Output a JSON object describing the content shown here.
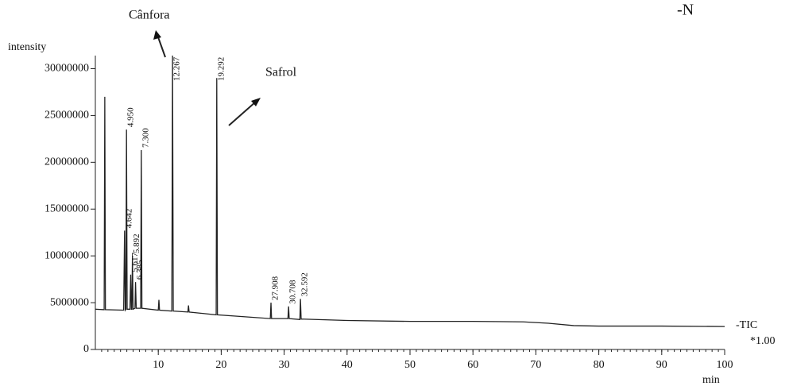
{
  "chart_data": {
    "type": "line",
    "y_label": "intensity",
    "x_label": "min",
    "annotations": [
      "Cânfora",
      "Safrol",
      "-N"
    ],
    "trace_label": "-TIC",
    "trace_scale": "*1.00",
    "color": "#222222",
    "xlim": [
      0,
      100
    ],
    "xticks": [
      10,
      20,
      30,
      40,
      50,
      60,
      70,
      80,
      90,
      100
    ],
    "ylim": [
      0,
      31400000
    ],
    "yticks": [
      0,
      5000000,
      10000000,
      15000000,
      20000000,
      25000000,
      30000000
    ],
    "x": [
      0,
      1.4,
      1.5,
      1.6,
      4.5,
      4.642,
      4.75,
      4.85,
      4.95,
      5.05,
      5.5,
      5.617,
      5.72,
      5.8,
      5.892,
      6.0,
      6.3,
      6.385,
      6.5,
      7.2,
      7.3,
      7.4,
      10.0,
      10.1,
      10.2,
      12.15,
      12.267,
      12.38,
      14.7,
      14.8,
      14.9,
      19.2,
      19.292,
      19.4,
      27.8,
      27.908,
      28.0,
      30.6,
      30.708,
      30.8,
      32.5,
      32.592,
      32.7,
      40,
      50,
      60,
      68,
      72,
      76,
      80,
      90,
      100
    ],
    "values": [
      4300000,
      4250000,
      27000000,
      4250000,
      4200000,
      12700000,
      4200000,
      4300000,
      23500000,
      4300000,
      4300000,
      8000000,
      4300000,
      4300000,
      10000000,
      4300000,
      4400000,
      7200000,
      4400000,
      4400000,
      21300000,
      4400000,
      4200000,
      5300000,
      4200000,
      4100000,
      31400000,
      4100000,
      4000000,
      4700000,
      4000000,
      3700000,
      29000000,
      3700000,
      3300000,
      5000000,
      3300000,
      3300000,
      4600000,
      3300000,
      3200000,
      5400000,
      3250000,
      3100000,
      3000000,
      3000000,
      2950000,
      2800000,
      2550000,
      2500000,
      2500000,
      2450000
    ],
    "peak_labels": [
      {
        "value": 4.642,
        "label": "4.642"
      },
      {
        "value": 4.95,
        "label": "4.950"
      },
      {
        "value": 5.617,
        "label": "5.617"
      },
      {
        "value": 5.892,
        "label": "5.892"
      },
      {
        "value": 6.385,
        "label": "6.385"
      },
      {
        "value": 7.3,
        "label": "7.300"
      },
      {
        "value": 12.267,
        "label": "12.267"
      },
      {
        "value": 19.292,
        "label": "19.292"
      },
      {
        "value": 27.908,
        "label": "27.908"
      },
      {
        "value": 30.708,
        "label": "30.708"
      },
      {
        "value": 32.592,
        "label": "32.592"
      }
    ]
  }
}
